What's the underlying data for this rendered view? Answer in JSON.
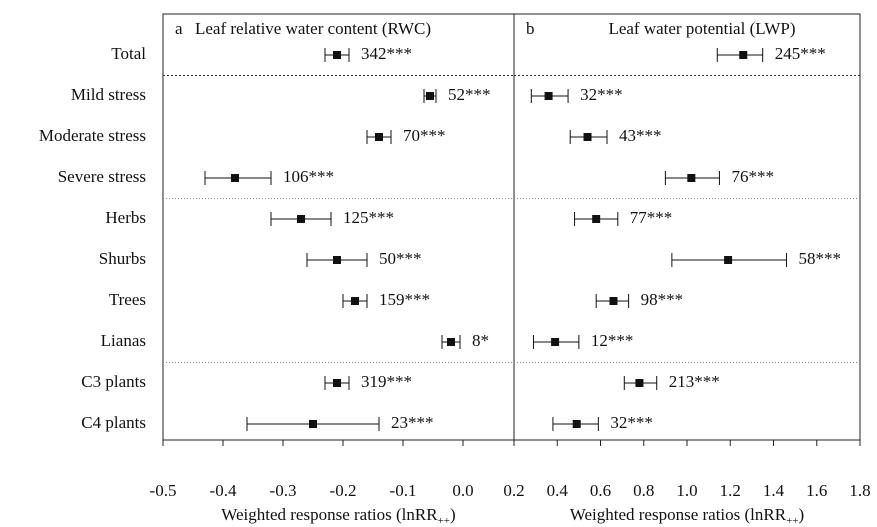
{
  "chart_data": [
    {
      "type": "forest",
      "panel": "a",
      "title": "Leaf relative water content (RWC)",
      "xlabel": [
        "Weighted response ratios (lnRR",
        "++",
        ")"
      ],
      "categories": [
        "Total",
        "Mild stress",
        "Moderate stress",
        "Severe stress",
        "Herbs",
        "Shurbs",
        "Trees",
        "Lianas",
        "C3 plants",
        "C4 plants"
      ],
      "values": [
        -0.21,
        -0.055,
        -0.14,
        -0.38,
        -0.27,
        -0.21,
        -0.18,
        -0.02,
        -0.21,
        -0.25
      ],
      "lower": [
        -0.23,
        -0.065,
        -0.16,
        -0.43,
        -0.32,
        -0.26,
        -0.2,
        -0.035,
        -0.23,
        -0.36
      ],
      "upper": [
        -0.19,
        -0.045,
        -0.12,
        -0.32,
        -0.22,
        -0.16,
        -0.16,
        -0.005,
        -0.19,
        -0.14
      ],
      "annotations": [
        "342***",
        "52***",
        "70***",
        "106***",
        "125***",
        "50***",
        "159***",
        "8*",
        "319***",
        "23***"
      ],
      "xlim": [
        -0.5,
        0.085
      ],
      "xticks": [
        -0.5,
        -0.4,
        -0.3,
        -0.2,
        -0.1,
        {
          "value": 0,
          "label": "0.0"
        }
      ],
      "color": "#111111"
    },
    {
      "type": "forest",
      "panel": "b",
      "title": "Leaf water potential (LWP)",
      "xlabel": [
        "Weighted response ratios (lnRR",
        "++",
        ")"
      ],
      "values": [
        1.26,
        0.36,
        0.54,
        1.02,
        0.58,
        1.19,
        0.66,
        0.39,
        0.78,
        0.49
      ],
      "lower": [
        1.14,
        0.28,
        0.46,
        0.9,
        0.48,
        0.93,
        0.58,
        0.29,
        0.71,
        0.38
      ],
      "upper": [
        1.35,
        0.45,
        0.63,
        1.15,
        0.68,
        1.46,
        0.73,
        0.5,
        0.86,
        0.59
      ],
      "annotations": [
        "245***",
        "32***",
        "43***",
        "76***",
        "77***",
        "58***",
        "98***",
        "12***",
        "213***",
        "32***"
      ],
      "xlim": [
        0.2,
        1.8
      ],
      "xticks": [
        0.2,
        0.4,
        0.6,
        0.8,
        {
          "value": 1,
          "label": "1.0"
        },
        1.2,
        1.4,
        1.6,
        1.8
      ],
      "color": "#111111"
    }
  ]
}
